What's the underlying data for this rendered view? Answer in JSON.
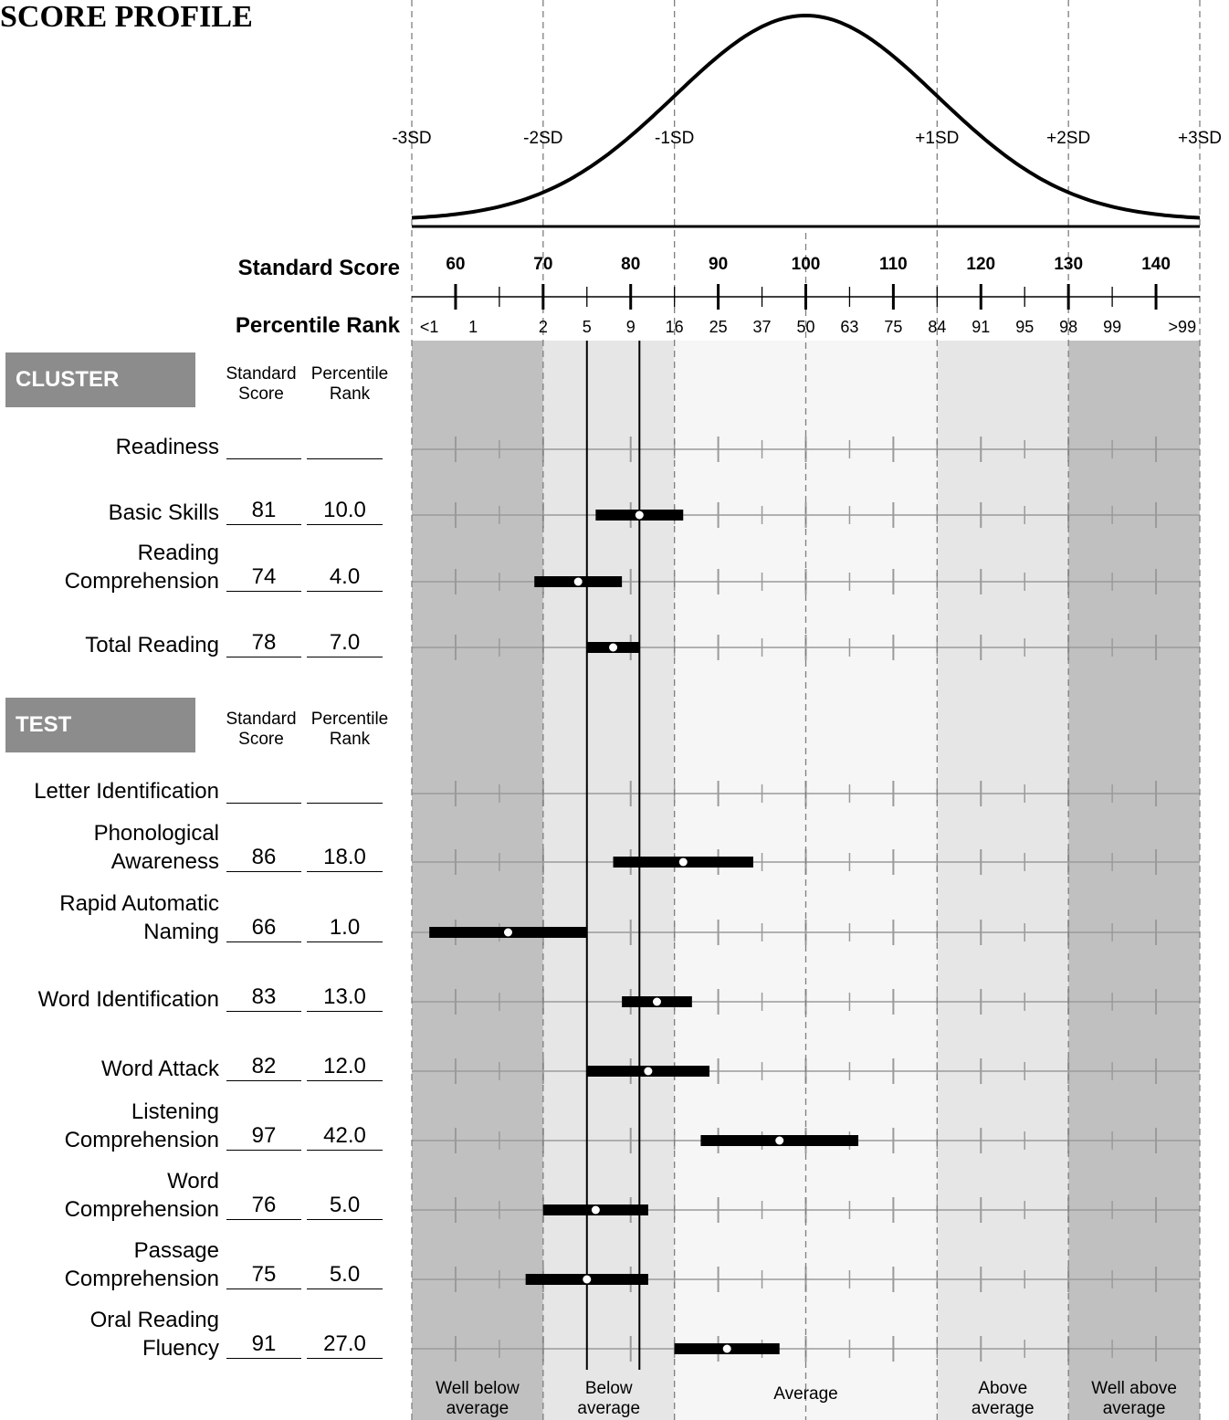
{
  "title": "SCORE PROFILE",
  "axis_titles": {
    "standard_score": "Standard Score",
    "percentile_rank": "Percentile Rank"
  },
  "sections": {
    "cluster": {
      "label": "CLUSTER",
      "col_ss": "Standard\nScore",
      "col_pr": "Percentile\nRank"
    },
    "test": {
      "label": "TEST",
      "col_ss": "Standard\nScore",
      "col_pr": "Percentile\nRank"
    }
  },
  "colors": {
    "well_band": "#c0c0c0",
    "mid_band": "#e6e6e6",
    "avg_band": "#f6f6f6",
    "bar": "#000000",
    "grid": "#9a9a9a"
  },
  "chart_data": {
    "type": "range-bar",
    "title": "SCORE PROFILE",
    "x_scale": "standard score",
    "xlim": [
      55,
      145
    ],
    "curve": "normal distribution",
    "sd_labels": [
      {
        "label": "-3SD",
        "ss": 55
      },
      {
        "label": "-2SD",
        "ss": 70
      },
      {
        "label": "-1SD",
        "ss": 85
      },
      {
        "label": "+1SD",
        "ss": 115
      },
      {
        "label": "+2SD",
        "ss": 130
      },
      {
        "label": "+3SD",
        "ss": 145
      }
    ],
    "ss_ticks": [
      {
        "label": "60",
        "ss": 60
      },
      {
        "label": "70",
        "ss": 70
      },
      {
        "label": "80",
        "ss": 80
      },
      {
        "label": "90",
        "ss": 90
      },
      {
        "label": "100",
        "ss": 100
      },
      {
        "label": "110",
        "ss": 110
      },
      {
        "label": "120",
        "ss": 120
      },
      {
        "label": "130",
        "ss": 130
      },
      {
        "label": "140",
        "ss": 140
      }
    ],
    "pr_ticks": [
      {
        "label": "<1",
        "ss": 57
      },
      {
        "label": "1",
        "ss": 62
      },
      {
        "label": "2",
        "ss": 70
      },
      {
        "label": "5",
        "ss": 75
      },
      {
        "label": "9",
        "ss": 80
      },
      {
        "label": "16",
        "ss": 85
      },
      {
        "label": "25",
        "ss": 90
      },
      {
        "label": "37",
        "ss": 95
      },
      {
        "label": "50",
        "ss": 100
      },
      {
        "label": "63",
        "ss": 105
      },
      {
        "label": "75",
        "ss": 110
      },
      {
        "label": "84",
        "ss": 115
      },
      {
        "label": "91",
        "ss": 120
      },
      {
        "label": "95",
        "ss": 125
      },
      {
        "label": "98",
        "ss": 130
      },
      {
        "label": "99",
        "ss": 135
      },
      {
        "label": ">99",
        "ss": 143
      }
    ],
    "bands": [
      {
        "label": "Well below\naverage",
        "from": 55,
        "to": 70,
        "color": "#c0c0c0"
      },
      {
        "label": "Below\naverage",
        "from": 70,
        "to": 85,
        "color": "#e6e6e6"
      },
      {
        "label": "Average",
        "from": 85,
        "to": 115,
        "color": "#f6f6f6"
      },
      {
        "label": "Above\naverage",
        "from": 115,
        "to": 130,
        "color": "#e6e6e6"
      },
      {
        "label": "Well above\naverage",
        "from": 130,
        "to": 145,
        "color": "#c0c0c0"
      }
    ],
    "reference_lines": [
      75,
      81
    ],
    "clusters": [
      {
        "name": "Readiness",
        "ss": "",
        "pr": "",
        "score": null,
        "low": null,
        "high": null
      },
      {
        "name": "Basic Skills",
        "ss": "81",
        "pr": "10.0",
        "score": 81,
        "low": 76,
        "high": 86
      },
      {
        "name": "Reading\nComprehension",
        "ss": "74",
        "pr": "4.0",
        "score": 74,
        "low": 69,
        "high": 79
      },
      {
        "name": "Total Reading",
        "ss": "78",
        "pr": "7.0",
        "score": 78,
        "low": 75,
        "high": 81
      }
    ],
    "tests": [
      {
        "name": "Letter Identification",
        "ss": "",
        "pr": "",
        "score": null,
        "low": null,
        "high": null
      },
      {
        "name": "Phonological\nAwareness",
        "ss": "86",
        "pr": "18.0",
        "score": 86,
        "low": 78,
        "high": 94
      },
      {
        "name": "Rapid Automatic\nNaming",
        "ss": "66",
        "pr": "1.0",
        "score": 66,
        "low": 57,
        "high": 75
      },
      {
        "name": "Word Identification",
        "ss": "83",
        "pr": "13.0",
        "score": 83,
        "low": 79,
        "high": 87
      },
      {
        "name": "Word Attack",
        "ss": "82",
        "pr": "12.0",
        "score": 82,
        "low": 75,
        "high": 89
      },
      {
        "name": "Listening\nComprehension",
        "ss": "97",
        "pr": "42.0",
        "score": 97,
        "low": 88,
        "high": 106
      },
      {
        "name": "Word\nComprehension",
        "ss": "76",
        "pr": "5.0",
        "score": 76,
        "low": 70,
        "high": 82
      },
      {
        "name": "Passage\nComprehension",
        "ss": "75",
        "pr": "5.0",
        "score": 75,
        "low": 68,
        "high": 82
      },
      {
        "name": "Oral Reading\nFluency",
        "ss": "91",
        "pr": "27.0",
        "score": 91,
        "low": 85,
        "high": 97
      }
    ]
  }
}
